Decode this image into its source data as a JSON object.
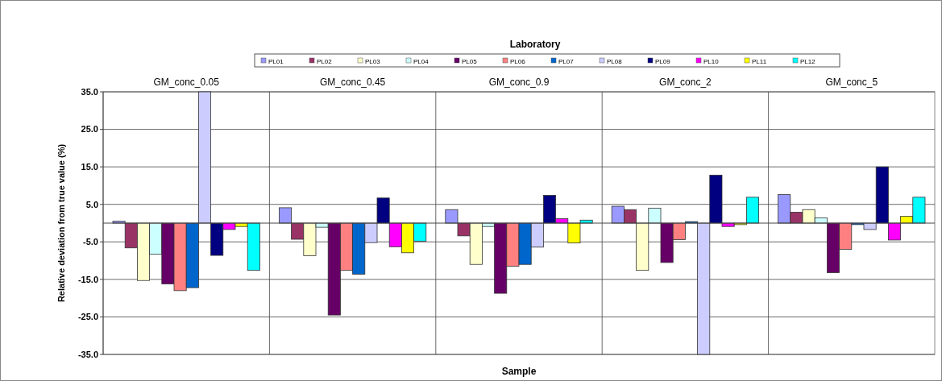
{
  "chart_data": {
    "type": "bar",
    "title": "Laboratory",
    "xlabel": "Sample",
    "ylabel": "Relative deviation from true value (%)",
    "categories": [
      "GM_conc_0.05",
      "GM_conc_0.45",
      "GM_conc_0.9",
      "GM_conc_2",
      "GM_conc_5"
    ],
    "series": [
      {
        "name": "PL01",
        "color": "#9999ff",
        "values": [
          0.5,
          4.1,
          3.6,
          4.5,
          7.6
        ]
      },
      {
        "name": "PL02",
        "color": "#993366",
        "values": [
          -6.6,
          -4.3,
          -3.4,
          3.6,
          2.9
        ]
      },
      {
        "name": "PL03",
        "color": "#ffffcc",
        "values": [
          -15.3,
          -8.7,
          -11.0,
          -12.6,
          3.6
        ]
      },
      {
        "name": "PL04",
        "color": "#ccffff",
        "values": [
          -8.3,
          -1.1,
          -0.9,
          4.0,
          1.4
        ]
      },
      {
        "name": "PL05",
        "color": "#660066",
        "values": [
          -16.2,
          -24.5,
          -18.7,
          -10.5,
          -13.2
        ]
      },
      {
        "name": "PL06",
        "color": "#ff8080",
        "values": [
          -18.0,
          -12.6,
          -11.5,
          -4.4,
          -7.0
        ]
      },
      {
        "name": "PL07",
        "color": "#0066cc",
        "values": [
          -17.2,
          -13.6,
          -11.0,
          0.4,
          -0.4
        ]
      },
      {
        "name": "PL08",
        "color": "#ccccff",
        "values": [
          35,
          -5.2,
          -6.4,
          -35,
          -1.7
        ]
      },
      {
        "name": "PL09",
        "color": "#000080",
        "values": [
          -8.6,
          6.7,
          7.4,
          12.8,
          15.0
        ]
      },
      {
        "name": "PL10",
        "color": "#ff00ff",
        "values": [
          -1.7,
          -6.3,
          1.2,
          -0.9,
          -4.5
        ]
      },
      {
        "name": "PL11",
        "color": "#ffff00",
        "values": [
          -0.9,
          -7.9,
          -5.3,
          -0.4,
          1.8
        ]
      },
      {
        "name": "PL12",
        "color": "#00ffff",
        "values": [
          -12.6,
          -4.8,
          0.8,
          6.9,
          6.9
        ]
      }
    ],
    "ylim": [
      -35,
      35
    ],
    "yticks": [
      {
        "value": 35,
        "label": "35.0"
      },
      {
        "value": 25,
        "label": "25.0"
      },
      {
        "value": 15,
        "label": "15.0"
      },
      {
        "value": 5,
        "label": "5.0"
      },
      {
        "value": -5,
        "label": "-5.0"
      },
      {
        "value": -15,
        "label": "-15.0"
      },
      {
        "value": -25,
        "label": "-25.0"
      },
      {
        "value": -35,
        "label": "-35.0"
      }
    ],
    "grid": "y",
    "legend": "top"
  }
}
